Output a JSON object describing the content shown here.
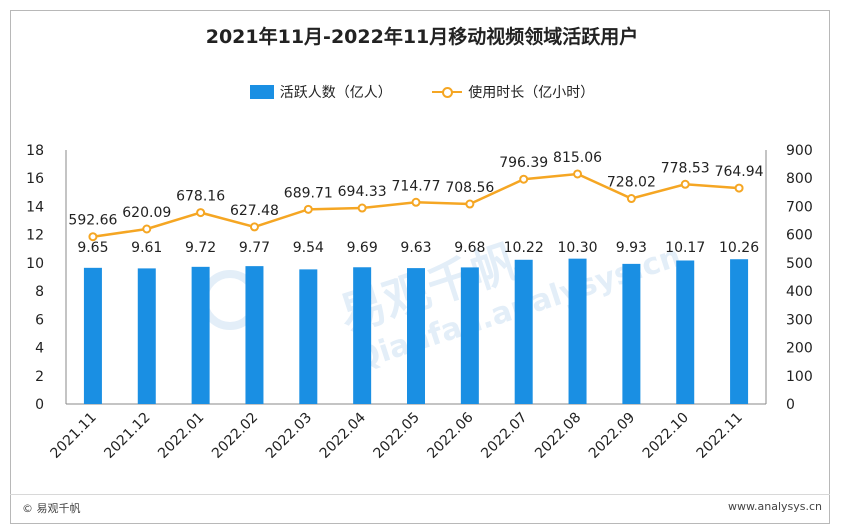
{
  "chart_data": {
    "type": "bar",
    "title": "2021年11月-2022年11月移动视频领域活跃用户",
    "categories": [
      "2021.11",
      "2021.12",
      "2022.01",
      "2022.02",
      "2022.03",
      "2022.04",
      "2022.05",
      "2022.06",
      "2022.07",
      "2022.08",
      "2022.09",
      "2022.10",
      "2022.11"
    ],
    "series": [
      {
        "name": "活跃人数（亿人）",
        "type": "bar",
        "axis": "left",
        "color": "#1a8fe3",
        "values": [
          9.65,
          9.61,
          9.72,
          9.77,
          9.54,
          9.69,
          9.63,
          9.68,
          10.22,
          10.3,
          9.93,
          10.17,
          10.26
        ],
        "labels": [
          "9.65",
          "9.61",
          "9.72",
          "9.77",
          "9.54",
          "9.69",
          "9.63",
          "9.68",
          "10.22",
          "10.30",
          "9.93",
          "10.17",
          "10.26"
        ]
      },
      {
        "name": "使用时长（亿小时）",
        "type": "line",
        "axis": "right",
        "color": "#f5a623",
        "values": [
          592.66,
          620.09,
          678.16,
          627.48,
          689.71,
          694.33,
          714.77,
          708.56,
          796.39,
          815.06,
          728.02,
          778.53,
          764.94
        ],
        "labels": [
          "592.66",
          "620.09",
          "678.16",
          "627.48",
          "689.71",
          "694.33",
          "714.77",
          "708.56",
          "796.39",
          "815.06",
          "728.02",
          "778.53",
          "764.94"
        ]
      }
    ],
    "y_left": {
      "min": 0,
      "max": 18,
      "ticks": [
        "0",
        "2",
        "4",
        "6",
        "8",
        "10",
        "12",
        "14",
        "16",
        "18"
      ]
    },
    "y_right": {
      "min": 0,
      "max": 900,
      "ticks": [
        "0",
        "100",
        "200",
        "300",
        "400",
        "500",
        "600",
        "700",
        "800",
        "900"
      ]
    },
    "legend_position": "top-center",
    "grid": false
  },
  "watermark": {
    "text_cn": "易观千帆",
    "text_en": "Qianfan.analysys.cn"
  },
  "footer": {
    "left": "© 易观千帆",
    "right": "www.analysys.cn"
  }
}
